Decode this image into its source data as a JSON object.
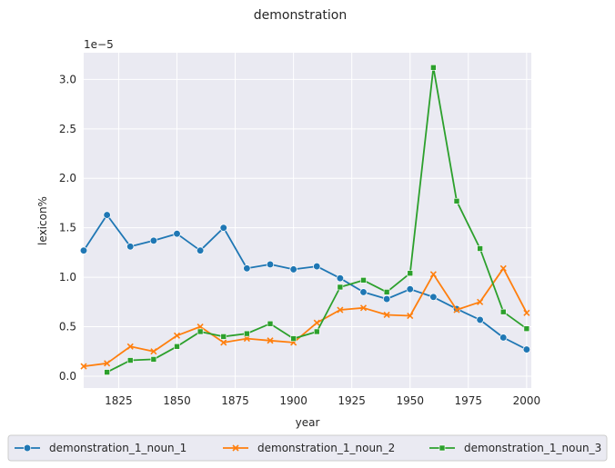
{
  "chart_data": {
    "type": "line",
    "title": "demonstration",
    "xlabel": "year",
    "ylabel": "lexicon%",
    "y_multiplier_label": "1e−5",
    "xlim": [
      1810,
      2002
    ],
    "ylim": [
      -0.12,
      3.27
    ],
    "x_ticks": [
      1825,
      1850,
      1875,
      1900,
      1925,
      1950,
      1975,
      2000
    ],
    "y_ticks": [
      0.0,
      0.5,
      1.0,
      1.5,
      2.0,
      2.5,
      3.0
    ],
    "y_tick_labels": [
      "0.0",
      "0.5",
      "1.0",
      "1.5",
      "2.0",
      "2.5",
      "3.0"
    ],
    "grid": true,
    "legend_position": "bottom-center",
    "series": [
      {
        "name": "demonstration_1_noun_1",
        "color": "#1f77b4",
        "marker": "circle",
        "x": [
          1810,
          1820,
          1830,
          1840,
          1850,
          1860,
          1870,
          1880,
          1890,
          1900,
          1910,
          1920,
          1930,
          1940,
          1950,
          1960,
          1970,
          1980,
          1990,
          2000
        ],
        "y": [
          1.27,
          1.63,
          1.31,
          1.37,
          1.44,
          1.27,
          1.5,
          1.09,
          1.13,
          1.08,
          1.11,
          0.99,
          0.85,
          0.78,
          0.88,
          0.8,
          0.68,
          0.57,
          0.39,
          0.27
        ]
      },
      {
        "name": "demonstration_1_noun_2",
        "color": "#ff7f0e",
        "marker": "x",
        "x": [
          1810,
          1820,
          1830,
          1840,
          1850,
          1860,
          1870,
          1880,
          1890,
          1900,
          1910,
          1920,
          1930,
          1940,
          1950,
          1960,
          1970,
          1980,
          1990,
          2000
        ],
        "y": [
          0.1,
          0.13,
          0.3,
          0.25,
          0.41,
          0.5,
          0.34,
          0.38,
          0.36,
          0.34,
          0.54,
          0.67,
          0.69,
          0.62,
          0.61,
          1.03,
          0.67,
          0.75,
          1.09,
          0.64
        ]
      },
      {
        "name": "demonstration_1_noun_3",
        "color": "#2ca02c",
        "marker": "square",
        "x": [
          1820,
          1830,
          1840,
          1850,
          1860,
          1870,
          1880,
          1890,
          1900,
          1910,
          1920,
          1930,
          1940,
          1950,
          1960,
          1970,
          1980,
          1990,
          2000
        ],
        "y": [
          0.04,
          0.16,
          0.17,
          0.3,
          0.45,
          0.4,
          0.43,
          0.53,
          0.38,
          0.45,
          0.9,
          0.97,
          0.85,
          1.04,
          3.12,
          1.77,
          1.29,
          0.65,
          0.48
        ]
      }
    ]
  }
}
